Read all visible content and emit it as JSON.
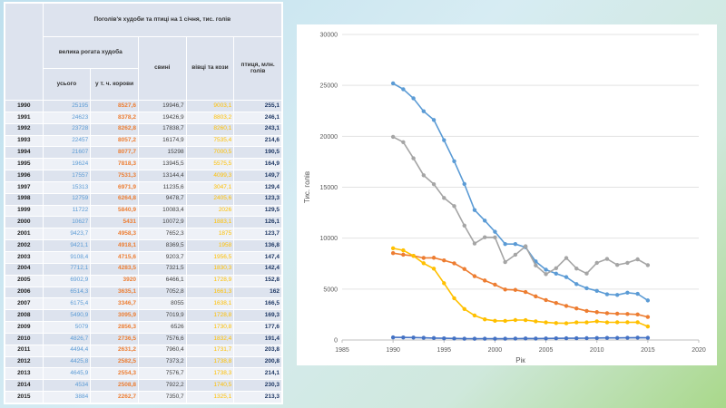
{
  "table": {
    "title": "Поголів'я худоби та птиці на 1 січня, тис. голів",
    "headers": {
      "cattle_group": "велика рогата худоба",
      "cattle_all": "усього",
      "cows": "у т. ч. корови",
      "pigs": "свині",
      "sheep": "вівці та кози",
      "poultry": "птиця, млн. голів"
    },
    "rows": [
      [
        "1990",
        "25195",
        "8527,6",
        "19946,7",
        "9003,1",
        "255,1"
      ],
      [
        "1991",
        "24623",
        "8378,2",
        "19426,9",
        "8803,2",
        "246,1"
      ],
      [
        "1992",
        "23728",
        "8262,8",
        "17838,7",
        "8260,1",
        "243,1"
      ],
      [
        "1993",
        "22457",
        "8057,2",
        "16174,9",
        "7535,4",
        "214,6"
      ],
      [
        "1994",
        "21607",
        "8077,7",
        "15298",
        "7000,5",
        "190,5"
      ],
      [
        "1995",
        "19624",
        "7818,3",
        "13945,5",
        "5575,5",
        "164,9"
      ],
      [
        "1996",
        "17557",
        "7531,3",
        "13144,4",
        "4099,3",
        "149,7"
      ],
      [
        "1997",
        "15313",
        "6971,9",
        "11235,6",
        "3047,1",
        "129,4"
      ],
      [
        "1998",
        "12759",
        "6264,8",
        "9478,7",
        "2405,6",
        "123,3"
      ],
      [
        "1999",
        "11722",
        "5840,9",
        "10083,4",
        "2026",
        "129,5"
      ],
      [
        "2000",
        "10627",
        "5431",
        "10072,9",
        "1883,1",
        "126,1"
      ],
      [
        "2001",
        "9423,7",
        "4958,3",
        "7652,3",
        "1875",
        "123,7"
      ],
      [
        "2002",
        "9421,1",
        "4918,1",
        "8369,5",
        "1958",
        "136,8"
      ],
      [
        "2003",
        "9108,4",
        "4715,6",
        "9203,7",
        "1956,5",
        "147,4"
      ],
      [
        "2004",
        "7712,1",
        "4283,5",
        "7321,5",
        "1830,3",
        "142,4"
      ],
      [
        "2005",
        "6902,9",
        "3920",
        "6466,1",
        "1728,9",
        "152,8"
      ],
      [
        "2006",
        "6514,3",
        "3635,1",
        "7052,8",
        "1661,3",
        "162"
      ],
      [
        "2007",
        "6175,4",
        "3346,7",
        "8055",
        "1638,1",
        "166,5"
      ],
      [
        "2008",
        "5490,9",
        "3095,9",
        "7019,9",
        "1728,8",
        "169,3"
      ],
      [
        "2009",
        "5079",
        "2856,3",
        "6526",
        "1730,8",
        "177,6"
      ],
      [
        "2010",
        "4826,7",
        "2736,5",
        "7576,6",
        "1832,4",
        "191,4"
      ],
      [
        "2011",
        "4494,4",
        "2631,2",
        "7960,4",
        "1731,7",
        "203,8"
      ],
      [
        "2012",
        "4425,8",
        "2582,5",
        "7373,2",
        "1738,8",
        "200,8"
      ],
      [
        "2013",
        "4645,9",
        "2554,3",
        "7576,7",
        "1738,3",
        "214,1"
      ],
      [
        "2014",
        "4534",
        "2508,8",
        "7922,2",
        "1740,5",
        "230,3"
      ],
      [
        "2015",
        "3884",
        "2262,7",
        "7350,7",
        "1325,1",
        "213,3"
      ]
    ]
  },
  "chart_data": {
    "type": "line",
    "xlabel": "Рік",
    "ylabel": "Тис. голів",
    "xlim": [
      1985,
      2020
    ],
    "ylim": [
      0,
      30000
    ],
    "xticks": [
      1985,
      1990,
      1995,
      2000,
      2005,
      2010,
      2015,
      2020
    ],
    "yticks": [
      0,
      5000,
      10000,
      15000,
      20000,
      25000,
      30000
    ],
    "grid": true,
    "x": [
      1990,
      1991,
      1992,
      1993,
      1994,
      1995,
      1996,
      1997,
      1998,
      1999,
      2000,
      2001,
      2002,
      2003,
      2004,
      2005,
      2006,
      2007,
      2008,
      2009,
      2010,
      2011,
      2012,
      2013,
      2014,
      2015
    ],
    "series": [
      {
        "color": "#5b9bd5",
        "values": [
          25195,
          24623,
          23728,
          22457,
          21607,
          19624,
          17557,
          15313,
          12759,
          11722,
          10627,
          9423.7,
          9421.1,
          9108.4,
          7712.1,
          6902.9,
          6514.3,
          6175.4,
          5490.9,
          5079,
          4826.7,
          4494.4,
          4425.8,
          4645.9,
          4534,
          3884
        ]
      },
      {
        "color": "#ed7d31",
        "values": [
          8527.6,
          8378.2,
          8262.8,
          8057.2,
          8077.7,
          7818.3,
          7531.3,
          6971.9,
          6264.8,
          5840.9,
          5431,
          4958.3,
          4918.1,
          4715.6,
          4283.5,
          3920,
          3635.1,
          3346.7,
          3095.9,
          2856.3,
          2736.5,
          2631.2,
          2582.5,
          2554.3,
          2508.8,
          2262.7
        ]
      },
      {
        "color": "#a5a5a5",
        "values": [
          19946.7,
          19426.9,
          17838.7,
          16174.9,
          15298,
          13945.5,
          13144.4,
          11235.6,
          9478.7,
          10083.4,
          10072.9,
          7652.3,
          8369.5,
          9203.7,
          7321.5,
          6466.1,
          7052.8,
          8055,
          7019.9,
          6526,
          7576.6,
          7960.4,
          7373.2,
          7576.7,
          7922.2,
          7350.7
        ]
      },
      {
        "color": "#ffc000",
        "values": [
          9003.1,
          8803.2,
          8260.1,
          7535.4,
          7000.5,
          5575.5,
          4099.3,
          3047.1,
          2405.6,
          2026,
          1883.1,
          1875,
          1958,
          1956.5,
          1830.3,
          1728.9,
          1661.3,
          1638.1,
          1728.8,
          1730.8,
          1832.4,
          1731.7,
          1738.8,
          1738.3,
          1740.5,
          1325.1
        ]
      },
      {
        "color": "#4472c4",
        "values": [
          255.1,
          246.1,
          243.1,
          214.6,
          190.5,
          164.9,
          149.7,
          129.4,
          123.3,
          129.5,
          126.1,
          123.7,
          136.8,
          147.4,
          142.4,
          152.8,
          162,
          166.5,
          169.3,
          177.6,
          191.4,
          203.8,
          200.8,
          214.1,
          230.3,
          213.3
        ]
      }
    ]
  }
}
